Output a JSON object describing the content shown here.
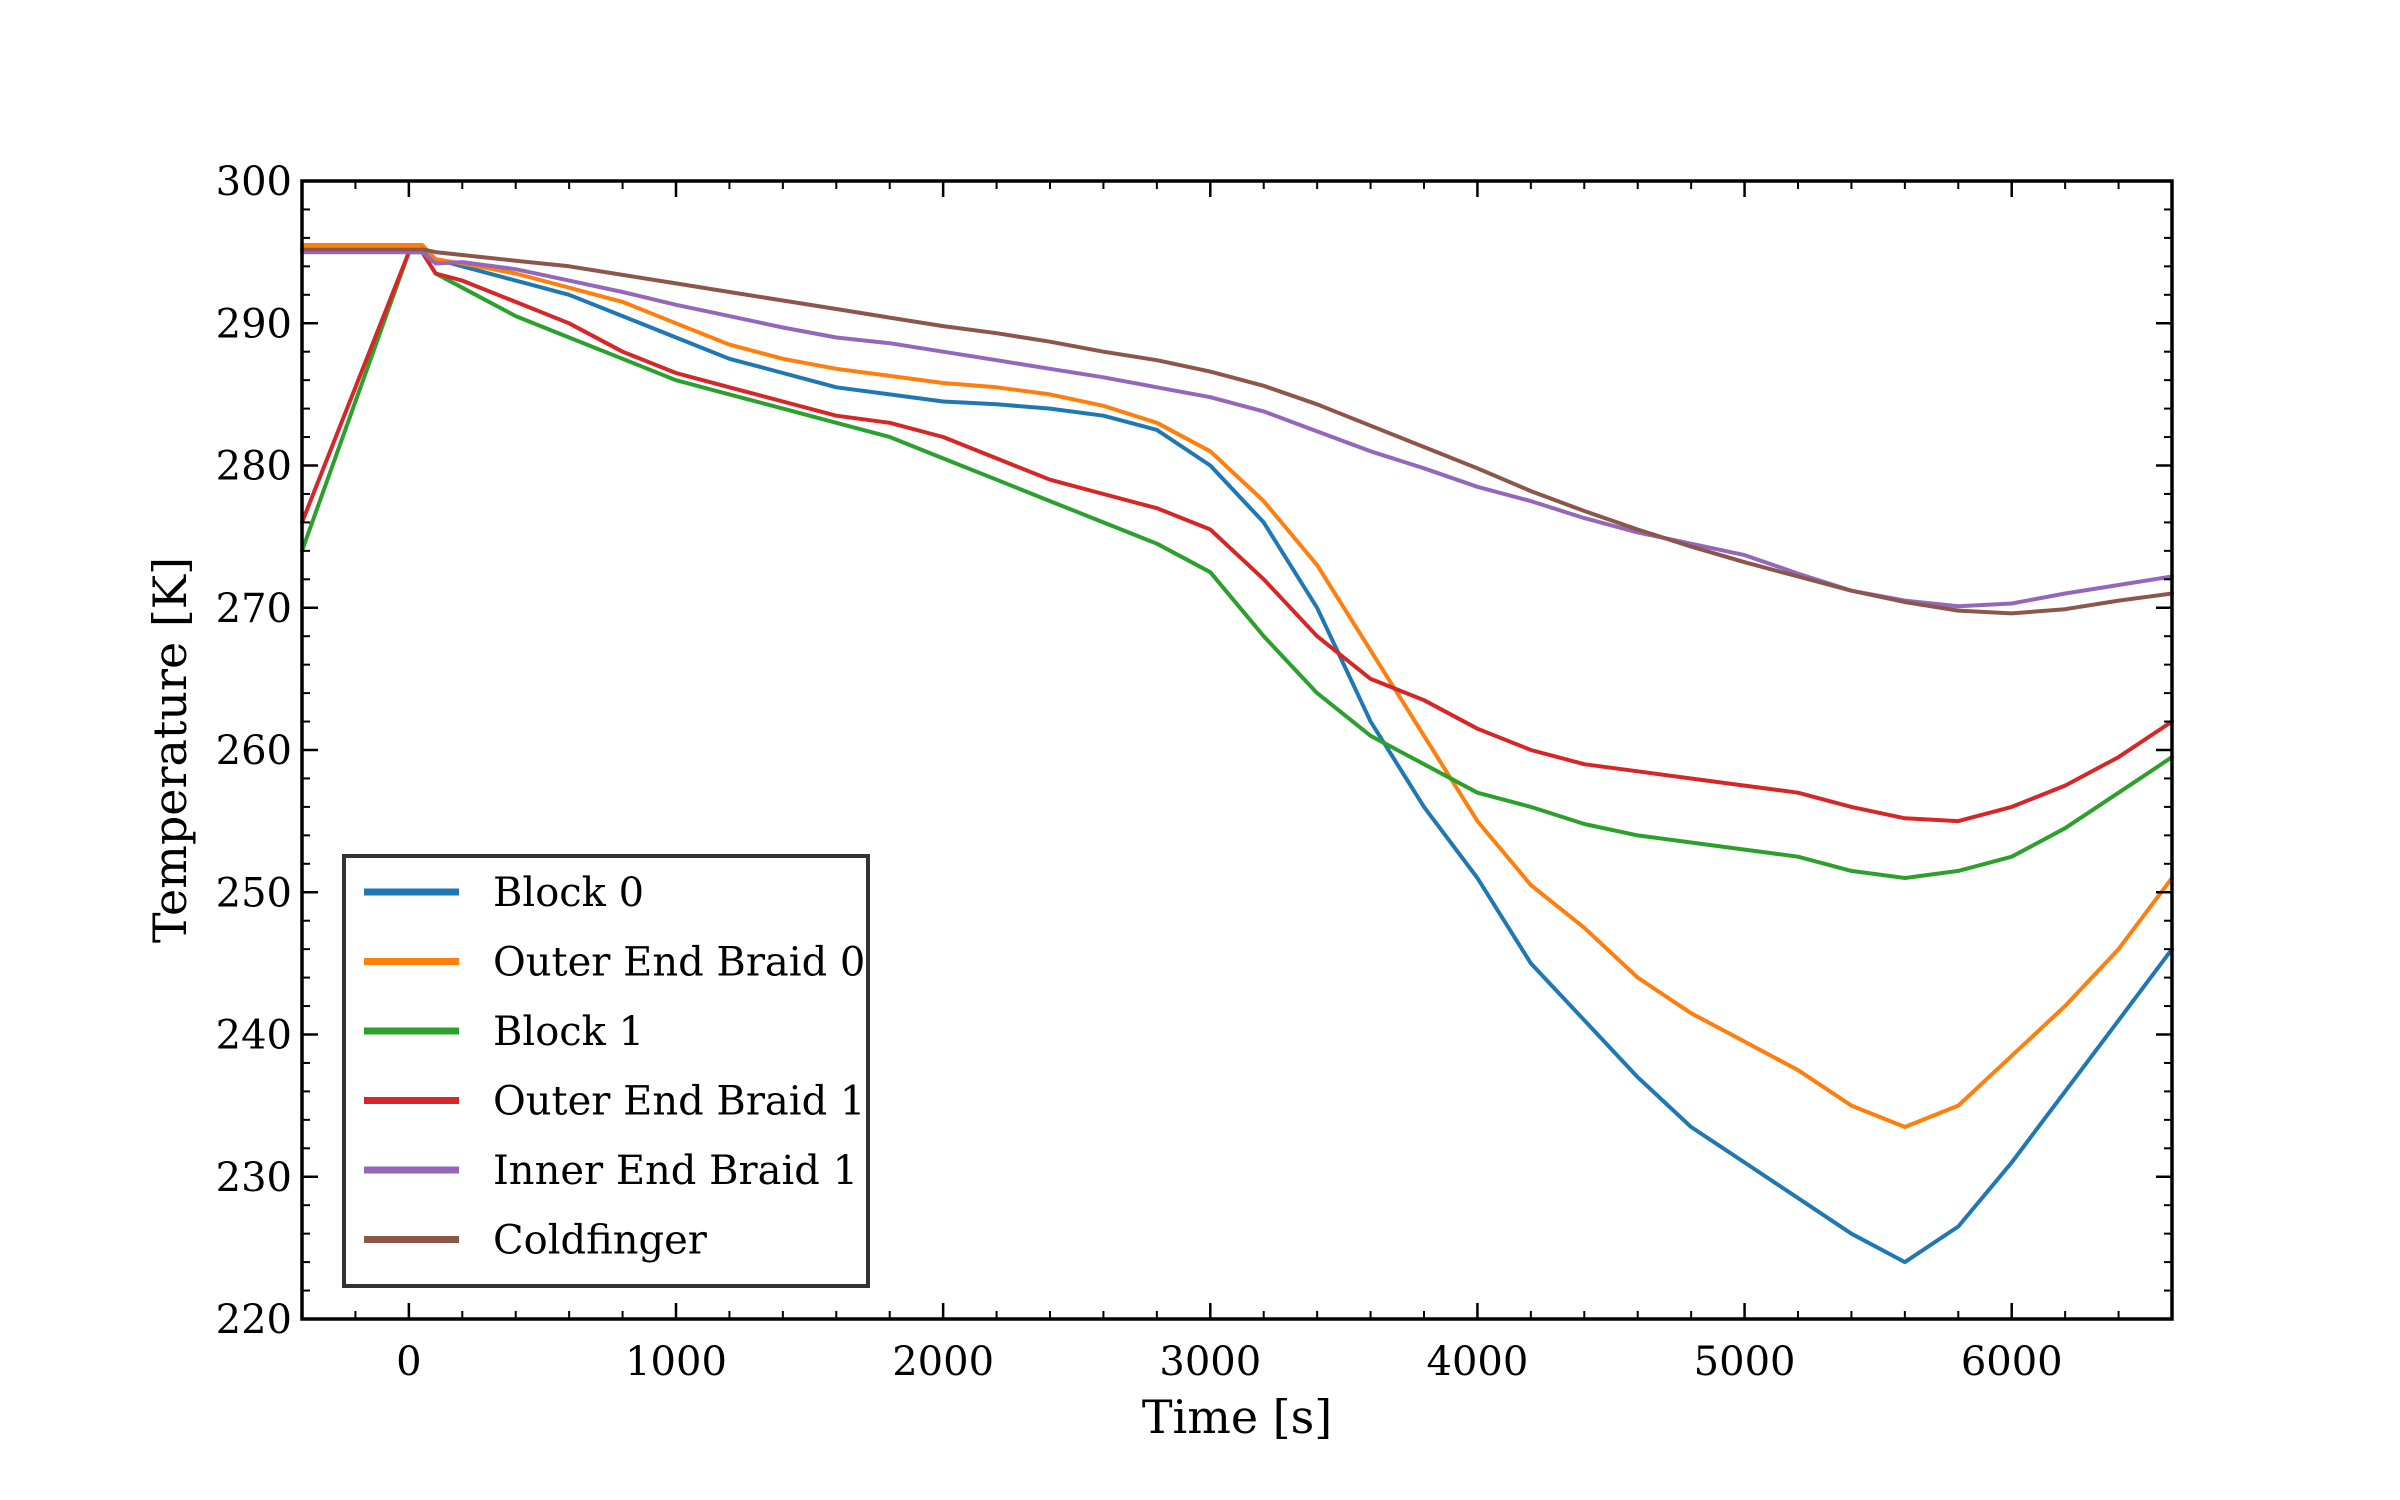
{
  "chart_data": {
    "type": "line",
    "xlabel": "Time [s]",
    "ylabel": "Temperature [K]",
    "xlim": [
      -400,
      6600
    ],
    "ylim": [
      220,
      300
    ],
    "xticks": [
      0,
      1000,
      2000,
      3000,
      4000,
      5000,
      6000
    ],
    "xtick_labels": [
      "0",
      "1000",
      "2000",
      "3000",
      "4000",
      "5000",
      "6000"
    ],
    "yticks": [
      220,
      230,
      240,
      250,
      260,
      270,
      280,
      290,
      300
    ],
    "ytick_labels": [
      "220",
      "230",
      "240",
      "250",
      "260",
      "270",
      "280",
      "290",
      "300"
    ],
    "grid": false,
    "legend_position": "lower-left",
    "series": [
      {
        "name": "Block 0",
        "color": "#1f77b4",
        "x": [
          -400,
          0,
          50,
          100,
          200,
          400,
          600,
          800,
          1000,
          1200,
          1400,
          1600,
          1800,
          2000,
          2200,
          2400,
          2600,
          2800,
          3000,
          3200,
          3400,
          3600,
          3800,
          4000,
          4200,
          4400,
          4600,
          4800,
          5000,
          5200,
          5400,
          5600,
          5800,
          6000,
          6200,
          6400,
          6600
        ],
        "y": [
          295,
          295,
          295,
          294.5,
          294,
          293,
          292,
          290.5,
          289,
          287.5,
          286.5,
          285.5,
          285,
          284.5,
          284.3,
          284,
          283.5,
          282.5,
          280,
          276,
          270,
          262,
          256,
          251,
          245,
          241,
          237,
          233.5,
          231,
          228.5,
          226,
          224,
          226.5,
          231,
          236,
          241,
          246
        ]
      },
      {
        "name": "Outer End Braid 0",
        "color": "#ff7f0e",
        "x": [
          -400,
          0,
          50,
          100,
          200,
          400,
          600,
          800,
          1000,
          1200,
          1400,
          1600,
          1800,
          2000,
          2200,
          2400,
          2600,
          2800,
          3000,
          3200,
          3400,
          3600,
          3800,
          4000,
          4200,
          4400,
          4600,
          4800,
          5000,
          5200,
          5400,
          5600,
          5800,
          6000,
          6200,
          6400,
          6600
        ],
        "y": [
          295.5,
          295.5,
          295.5,
          294.5,
          294.2,
          293.5,
          292.5,
          291.5,
          290,
          288.5,
          287.5,
          286.8,
          286.3,
          285.8,
          285.5,
          285,
          284.2,
          283,
          281,
          277.5,
          273,
          267,
          261,
          255,
          250.5,
          247.5,
          244,
          241.5,
          239.5,
          237.5,
          235,
          233.5,
          235,
          238.5,
          242,
          246,
          251
        ]
      },
      {
        "name": "Block 1",
        "color": "#2ca02c",
        "x": [
          -400,
          0,
          50,
          100,
          200,
          400,
          600,
          800,
          1000,
          1200,
          1400,
          1600,
          1800,
          2000,
          2200,
          2400,
          2600,
          2800,
          3000,
          3200,
          3400,
          3600,
          3800,
          4000,
          4200,
          4400,
          4600,
          4800,
          5000,
          5200,
          5400,
          5600,
          5800,
          6000,
          6200,
          6400,
          6600
        ],
        "y": [
          274,
          295,
          295,
          293.5,
          292.5,
          290.5,
          289,
          287.5,
          286,
          285,
          284,
          283,
          282,
          280.5,
          279,
          277.5,
          276,
          274.5,
          272.5,
          268,
          264,
          261,
          259,
          257,
          256,
          254.8,
          254,
          253.5,
          253,
          252.5,
          251.5,
          251,
          251.5,
          252.5,
          254.5,
          257,
          259.5
        ]
      },
      {
        "name": "Outer End Braid 1",
        "color": "#d62728",
        "x": [
          -400,
          0,
          50,
          100,
          200,
          400,
          600,
          800,
          1000,
          1200,
          1400,
          1600,
          1800,
          2000,
          2200,
          2400,
          2600,
          2800,
          3000,
          3200,
          3400,
          3600,
          3800,
          4000,
          4200,
          4400,
          4600,
          4800,
          5000,
          5200,
          5400,
          5600,
          5800,
          6000,
          6200,
          6400,
          6600
        ],
        "y": [
          276,
          295,
          295,
          293.5,
          293,
          291.5,
          290,
          288,
          286.5,
          285.5,
          284.5,
          283.5,
          283,
          282,
          280.5,
          279,
          278,
          277,
          275.5,
          272,
          268,
          265,
          263.5,
          261.5,
          260,
          259,
          258.5,
          258,
          257.5,
          257,
          256,
          255.2,
          255,
          256,
          257.5,
          259.5,
          262
        ]
      },
      {
        "name": "Inner End Braid 1",
        "color": "#9467bd",
        "x": [
          -400,
          0,
          50,
          100,
          200,
          400,
          600,
          800,
          1000,
          1200,
          1400,
          1600,
          1800,
          2000,
          2200,
          2400,
          2600,
          2800,
          3000,
          3200,
          3400,
          3600,
          3800,
          4000,
          4200,
          4400,
          4600,
          4800,
          5000,
          5200,
          5400,
          5600,
          5800,
          6000,
          6200,
          6400,
          6600
        ],
        "y": [
          295,
          295,
          295,
          294.2,
          294.3,
          293.8,
          293,
          292.2,
          291.3,
          290.5,
          289.7,
          289,
          288.6,
          288,
          287.4,
          286.8,
          286.2,
          285.5,
          284.8,
          283.8,
          282.4,
          281,
          279.8,
          278.5,
          277.5,
          276.3,
          275.3,
          274.5,
          273.7,
          272.4,
          271.2,
          270.5,
          270.1,
          270.3,
          271,
          271.6,
          272.2
        ]
      },
      {
        "name": "Coldfinger",
        "color": "#8c564b",
        "x": [
          -400,
          0,
          50,
          100,
          200,
          400,
          600,
          800,
          1000,
          1200,
          1400,
          1600,
          1800,
          2000,
          2200,
          2400,
          2600,
          2800,
          3000,
          3200,
          3400,
          3600,
          3800,
          4000,
          4200,
          4400,
          4600,
          4800,
          5000,
          5200,
          5400,
          5600,
          5800,
          6000,
          6200,
          6400,
          6600
        ],
        "y": [
          295.2,
          295.2,
          295.2,
          295,
          294.8,
          294.4,
          294,
          293.4,
          292.8,
          292.2,
          291.6,
          291,
          290.4,
          289.8,
          289.3,
          288.7,
          288,
          287.4,
          286.6,
          285.6,
          284.3,
          282.8,
          281.3,
          279.8,
          278.2,
          276.8,
          275.5,
          274.3,
          273.2,
          272.2,
          271.2,
          270.4,
          269.8,
          269.6,
          269.9,
          270.5,
          271
        ]
      }
    ]
  }
}
